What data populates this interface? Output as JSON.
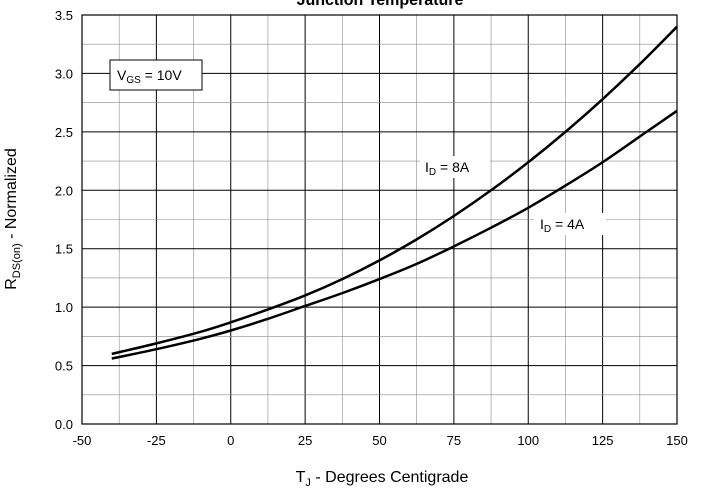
{
  "chart_data": {
    "type": "line",
    "title": "Junction Temperature",
    "xlabel": {
      "main": "T",
      "sub": "J",
      "rest": " - Degrees Centigrade"
    },
    "ylabel": {
      "main": "R",
      "sub": "DS(on)",
      "rest": " - Normalized"
    },
    "xlim": [
      -50,
      150
    ],
    "ylim": [
      0,
      3.5
    ],
    "x_ticks": [
      -50,
      -25,
      0,
      25,
      50,
      75,
      100,
      125,
      150
    ],
    "y_ticks": [
      0.0,
      0.5,
      1.0,
      1.5,
      2.0,
      2.5,
      3.0,
      3.5
    ],
    "y_tick_labels": [
      "0.0",
      "0.5",
      "1.0",
      "1.5",
      "2.0",
      "2.5",
      "3.0",
      "3.5"
    ],
    "x_grid_step": 12.5,
    "y_grid_step": 0.25,
    "grid": true,
    "legend_box": {
      "main": "V",
      "sub": "GS",
      "rest": " = 10V"
    },
    "series": [
      {
        "name": "I D = 8A",
        "label": {
          "main": "I",
          "sub": "D",
          "rest": " = 8A"
        },
        "x": [
          -40,
          -25,
          -10,
          0,
          12.5,
          25,
          37.5,
          50,
          62.5,
          75,
          87.5,
          100,
          112.5,
          125,
          137.5,
          150
        ],
        "y": [
          0.6,
          0.69,
          0.79,
          0.87,
          0.98,
          1.1,
          1.24,
          1.4,
          1.58,
          1.78,
          2.0,
          2.24,
          2.5,
          2.78,
          3.08,
          3.4
        ]
      },
      {
        "name": "I D = 4A",
        "label": {
          "main": "I",
          "sub": "D",
          "rest": " = 4A"
        },
        "x": [
          -40,
          -25,
          -10,
          0,
          12.5,
          25,
          37.5,
          50,
          62.5,
          75,
          87.5,
          100,
          112.5,
          125,
          137.5,
          150
        ],
        "y": [
          0.56,
          0.64,
          0.73,
          0.8,
          0.9,
          1.01,
          1.12,
          1.24,
          1.37,
          1.52,
          1.68,
          1.85,
          2.04,
          2.24,
          2.46,
          2.68
        ]
      }
    ]
  }
}
